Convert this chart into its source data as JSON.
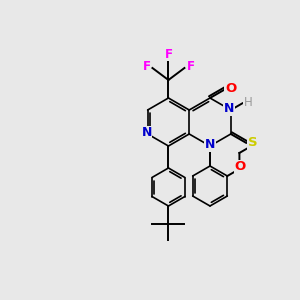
{
  "bg_color": "#e8e8e8",
  "bond_color": "#000000",
  "colors": {
    "N": "#0000cc",
    "O": "#ff0000",
    "S": "#cccc00",
    "F": "#ff00ff",
    "H": "#999999"
  },
  "figsize": [
    3.0,
    3.0
  ],
  "dpi": 100,
  "lw": 1.4,
  "lw_ring": 1.2
}
